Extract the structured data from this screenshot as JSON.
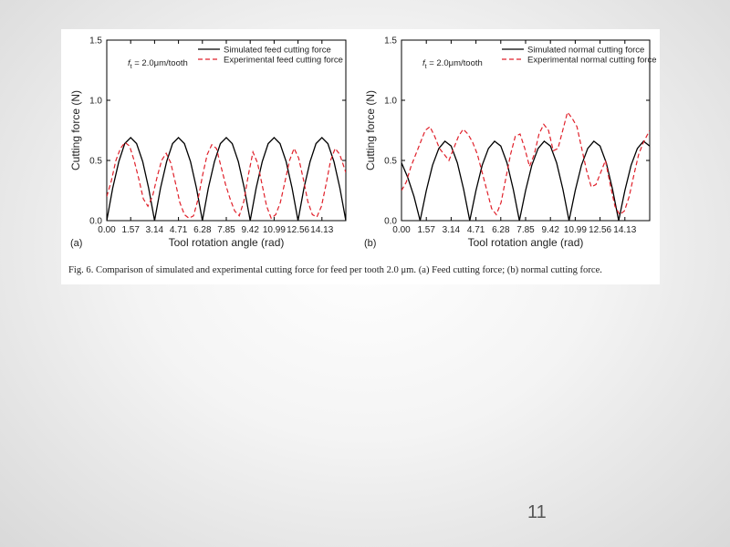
{
  "figure": {
    "caption": "Fig. 6. Comparison of simulated and experimental cutting force for feed per tooth 2.0 μm. (a) Feed cutting force; (b) normal cutting force."
  },
  "slide": {
    "number": "11"
  },
  "colors": {
    "simulated": "#000000",
    "experimental": "#e0202a"
  },
  "chart_data": [
    {
      "type": "line",
      "panel": "(a)",
      "annotation": "f_t = 2.0μm/tooth",
      "xlabel": "Tool rotation angle (rad)",
      "ylabel": "Cutting force (N)",
      "xlim": [
        0,
        15.7
      ],
      "ylim": [
        0,
        1.5
      ],
      "xticks": [
        0.0,
        1.57,
        3.14,
        4.71,
        6.28,
        7.85,
        9.42,
        10.99,
        12.56,
        14.13
      ],
      "xtick_labels": [
        "0.00",
        "1.57",
        "3.14",
        "4.71",
        "6.28",
        "7.85",
        "9.42",
        "10.99",
        "12.56",
        "14.13"
      ],
      "yticks": [
        0.0,
        0.5,
        1.0,
        1.5
      ],
      "ytick_labels": [
        "0.0",
        "0.5",
        "1.0",
        "1.5"
      ],
      "legend": "top-right",
      "grid": false,
      "series": [
        {
          "name": "Simulated feed cutting force",
          "style": "solid",
          "x": [
            0.0,
            0.39,
            0.79,
            1.18,
            1.57,
            1.96,
            2.36,
            2.75,
            3.14,
            3.53,
            3.93,
            4.32,
            4.71,
            5.1,
            5.5,
            5.89,
            6.28,
            6.67,
            7.07,
            7.46,
            7.85,
            8.24,
            8.64,
            9.03,
            9.42,
            9.81,
            10.21,
            10.6,
            10.99,
            11.38,
            11.78,
            12.17,
            12.56,
            12.95,
            13.35,
            13.74,
            14.13,
            14.52,
            14.92,
            15.31,
            15.7
          ],
          "y": [
            0.0,
            0.27,
            0.49,
            0.64,
            0.69,
            0.64,
            0.49,
            0.27,
            0.0,
            0.27,
            0.49,
            0.64,
            0.69,
            0.64,
            0.49,
            0.27,
            0.0,
            0.27,
            0.49,
            0.64,
            0.69,
            0.64,
            0.49,
            0.27,
            0.0,
            0.27,
            0.49,
            0.64,
            0.69,
            0.64,
            0.49,
            0.27,
            0.0,
            0.27,
            0.49,
            0.64,
            0.69,
            0.64,
            0.49,
            0.27,
            0.0
          ]
        },
        {
          "name": "Experimental feed cutting force",
          "style": "dashed",
          "x": [
            0.0,
            0.3,
            0.6,
            0.9,
            1.2,
            1.5,
            1.8,
            2.1,
            2.4,
            2.7,
            3.0,
            3.3,
            3.6,
            3.9,
            4.2,
            4.5,
            4.8,
            5.1,
            5.4,
            5.7,
            6.0,
            6.3,
            6.6,
            6.9,
            7.2,
            7.5,
            7.8,
            8.1,
            8.4,
            8.7,
            9.0,
            9.3,
            9.6,
            9.9,
            10.2,
            10.5,
            10.8,
            11.1,
            11.4,
            11.7,
            12.0,
            12.3,
            12.6,
            12.9,
            13.2,
            13.5,
            13.8,
            14.1,
            14.4,
            14.7,
            15.0,
            15.3,
            15.7
          ],
          "y": [
            0.2,
            0.33,
            0.5,
            0.6,
            0.65,
            0.62,
            0.5,
            0.35,
            0.18,
            0.12,
            0.2,
            0.36,
            0.5,
            0.56,
            0.48,
            0.32,
            0.15,
            0.05,
            0.02,
            0.04,
            0.18,
            0.38,
            0.55,
            0.63,
            0.6,
            0.45,
            0.3,
            0.18,
            0.08,
            0.04,
            0.16,
            0.38,
            0.57,
            0.48,
            0.3,
            0.12,
            0.02,
            0.05,
            0.15,
            0.32,
            0.5,
            0.6,
            0.52,
            0.35,
            0.16,
            0.05,
            0.03,
            0.12,
            0.3,
            0.5,
            0.6,
            0.55,
            0.4
          ]
        }
      ]
    },
    {
      "type": "line",
      "panel": "(b)",
      "annotation": "f_t = 2.0μm/tooth",
      "xlabel": "Tool rotation angle (rad)",
      "ylabel": "Cutting force (N)",
      "xlim": [
        0,
        15.7
      ],
      "ylim": [
        0,
        1.5
      ],
      "xticks": [
        0.0,
        1.57,
        3.14,
        4.71,
        6.28,
        7.85,
        9.42,
        10.99,
        12.56,
        14.13
      ],
      "xtick_labels": [
        "0.00",
        "1.57",
        "3.14",
        "4.71",
        "6.28",
        "7.85",
        "9.42",
        "10.99",
        "12.56",
        "14.13"
      ],
      "yticks": [
        0.0,
        0.5,
        1.0,
        1.5
      ],
      "ytick_labels": [
        "0.0",
        "0.5",
        "1.0",
        "1.5"
      ],
      "legend": "top-right",
      "grid": false,
      "series": [
        {
          "name": "Simulated normal cutting force",
          "style": "solid",
          "x": [
            0.0,
            0.39,
            0.79,
            1.18,
            1.57,
            1.96,
            2.36,
            2.75,
            3.14,
            3.53,
            3.93,
            4.32,
            4.71,
            5.1,
            5.5,
            5.89,
            6.28,
            6.67,
            7.07,
            7.46,
            7.85,
            8.24,
            8.64,
            9.03,
            9.42,
            9.81,
            10.21,
            10.6,
            10.99,
            11.38,
            11.78,
            12.17,
            12.56,
            12.95,
            13.35,
            13.74,
            14.13,
            14.52,
            14.92,
            15.31,
            15.7
          ],
          "y": [
            0.48,
            0.36,
            0.2,
            0.0,
            0.25,
            0.46,
            0.6,
            0.66,
            0.62,
            0.48,
            0.26,
            0.0,
            0.25,
            0.46,
            0.6,
            0.66,
            0.62,
            0.48,
            0.26,
            0.0,
            0.25,
            0.46,
            0.6,
            0.66,
            0.62,
            0.48,
            0.26,
            0.0,
            0.25,
            0.46,
            0.6,
            0.66,
            0.62,
            0.48,
            0.26,
            0.0,
            0.25,
            0.46,
            0.6,
            0.66,
            0.62
          ]
        },
        {
          "name": "Experimental normal cutting force",
          "style": "dashed",
          "x": [
            0.0,
            0.3,
            0.6,
            0.9,
            1.2,
            1.5,
            1.8,
            2.1,
            2.4,
            2.7,
            3.0,
            3.3,
            3.6,
            3.9,
            4.2,
            4.5,
            4.8,
            5.1,
            5.4,
            5.7,
            6.0,
            6.3,
            6.6,
            6.9,
            7.2,
            7.5,
            7.8,
            8.1,
            8.4,
            8.7,
            9.0,
            9.3,
            9.6,
            9.9,
            10.2,
            10.5,
            10.8,
            11.1,
            11.4,
            11.7,
            12.0,
            12.3,
            12.6,
            12.9,
            13.2,
            13.5,
            13.8,
            14.1,
            14.4,
            14.7,
            15.0,
            15.3,
            15.7
          ],
          "y": [
            0.25,
            0.32,
            0.45,
            0.55,
            0.65,
            0.75,
            0.78,
            0.7,
            0.6,
            0.55,
            0.5,
            0.6,
            0.7,
            0.76,
            0.72,
            0.65,
            0.55,
            0.4,
            0.25,
            0.1,
            0.05,
            0.15,
            0.35,
            0.55,
            0.7,
            0.72,
            0.6,
            0.45,
            0.55,
            0.72,
            0.8,
            0.75,
            0.58,
            0.6,
            0.75,
            0.9,
            0.85,
            0.78,
            0.6,
            0.42,
            0.28,
            0.3,
            0.4,
            0.5,
            0.3,
            0.12,
            0.05,
            0.08,
            0.2,
            0.38,
            0.55,
            0.65,
            0.75
          ]
        }
      ]
    }
  ]
}
